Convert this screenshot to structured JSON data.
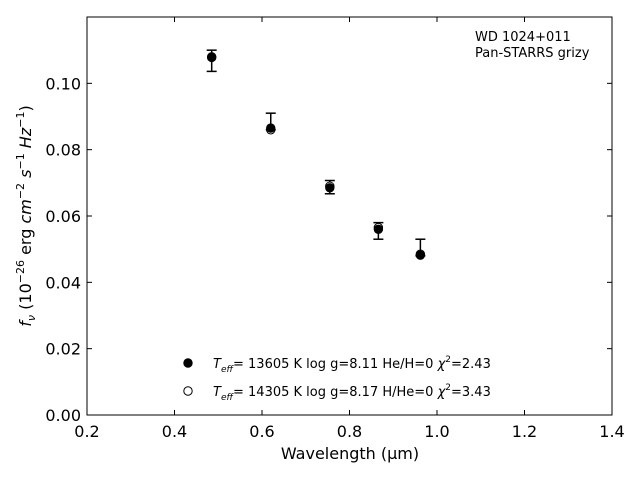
{
  "chart_data": {
    "type": "scatter",
    "annotation": [
      "WD 1024+011",
      "Pan-STARRS grizy"
    ],
    "xlabel": "Wavelength (μm)",
    "ylabel": "fν (10⁻²⁶ erg cm⁻² s⁻¹ Hz⁻¹)",
    "xlim": [
      0.2,
      1.4
    ],
    "ylim": [
      0.0,
      0.12
    ],
    "xticks": [
      "0.2",
      "0.4",
      "0.6",
      "0.8",
      "1.0",
      "1.2",
      "1.4"
    ],
    "yticks": [
      "0.00",
      "0.02",
      "0.04",
      "0.06",
      "0.08",
      "0.10"
    ],
    "grid": false,
    "legend_position": "bottom-center",
    "observed": {
      "x": [
        0.485,
        0.62,
        0.755,
        0.866,
        0.962
      ],
      "y": [
        0.1068,
        0.0875,
        0.0687,
        0.0555,
        0.0485
      ],
      "yerr_low": [
        0.0032,
        0.0015,
        0.002,
        0.0025,
        0.0005
      ],
      "yerr_high": [
        0.0032,
        0.0035,
        0.002,
        0.0025,
        0.0045
      ]
    },
    "series": [
      {
        "name": "Teff= 13605 K  log g=8.11  He/H=0  χ²=2.43",
        "legend_parts": [
          "T",
          "eff",
          "= 13605 K  log g=8.11  He/H=0  ",
          "χ",
          "2",
          "=2.43"
        ],
        "marker": "filled-circle",
        "x": [
          0.485,
          0.62,
          0.755,
          0.866,
          0.962
        ],
        "y": [
          0.1078,
          0.0865,
          0.0685,
          0.056,
          0.0482
        ]
      },
      {
        "name": "Teff= 14305 K  log g=8.17  H/He=0  χ²=3.43",
        "legend_parts": [
          "T",
          "eff",
          "= 14305 K  log g=8.17  H/He=0  ",
          "χ",
          "2",
          "=3.43"
        ],
        "marker": "open-circle",
        "x": [
          0.485,
          0.62,
          0.755,
          0.866,
          0.962
        ],
        "y": [
          0.108,
          0.086,
          0.069,
          0.0565,
          0.0485
        ]
      }
    ]
  }
}
